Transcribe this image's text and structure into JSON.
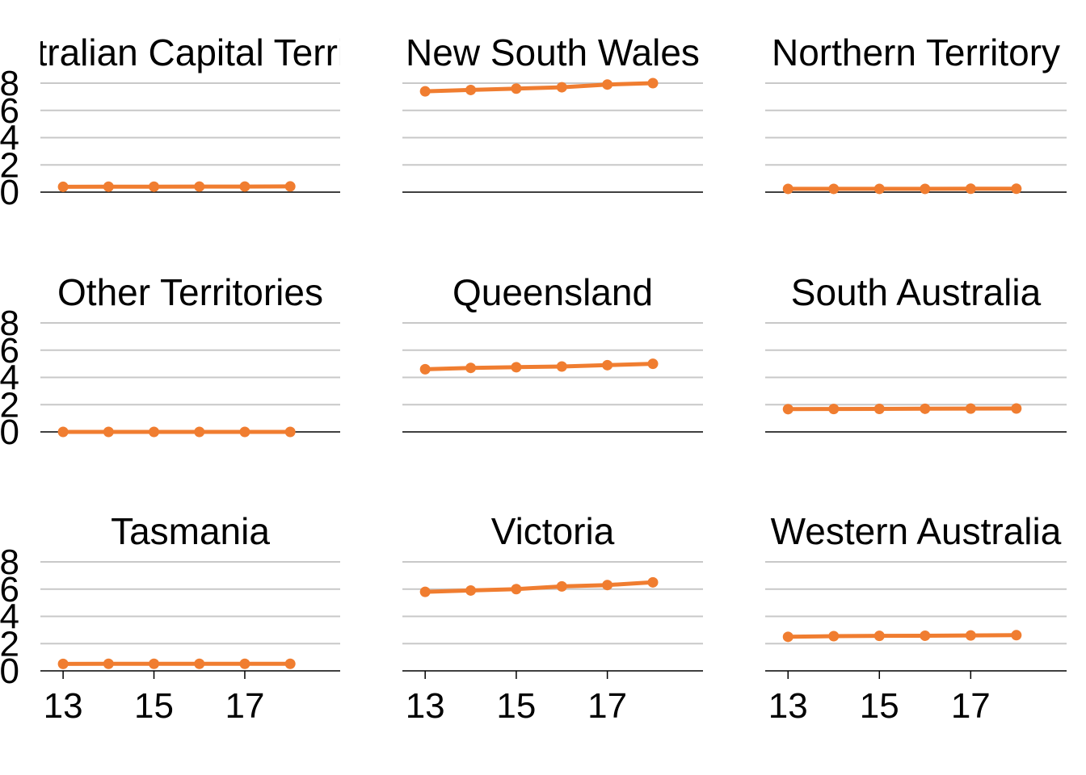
{
  "chart_data": [
    {
      "type": "line",
      "title": "Australian Capital Territory",
      "x": [
        13,
        14,
        15,
        16,
        17,
        18
      ],
      "values": [
        0.39,
        0.4,
        0.4,
        0.41,
        0.41,
        0.42
      ]
    },
    {
      "type": "line",
      "title": "New South Wales",
      "x": [
        13,
        14,
        15,
        16,
        17,
        18
      ],
      "values": [
        7.4,
        7.5,
        7.6,
        7.7,
        7.9,
        8.0
      ]
    },
    {
      "type": "line",
      "title": "Northern Territory",
      "x": [
        13,
        14,
        15,
        16,
        17,
        18
      ],
      "values": [
        0.24,
        0.24,
        0.24,
        0.24,
        0.25,
        0.25
      ]
    },
    {
      "type": "line",
      "title": "Other Territories",
      "x": [
        13,
        14,
        15,
        16,
        17,
        18
      ],
      "values": [
        0.0,
        0.0,
        0.0,
        0.0,
        0.0,
        0.0
      ]
    },
    {
      "type": "line",
      "title": "Queensland",
      "x": [
        13,
        14,
        15,
        16,
        17,
        18
      ],
      "values": [
        4.6,
        4.7,
        4.75,
        4.8,
        4.9,
        5.0
      ]
    },
    {
      "type": "line",
      "title": "South Australia",
      "x": [
        13,
        14,
        15,
        16,
        17,
        18
      ],
      "values": [
        1.67,
        1.68,
        1.69,
        1.7,
        1.71,
        1.72
      ]
    },
    {
      "type": "line",
      "title": "Tasmania",
      "x": [
        13,
        14,
        15,
        16,
        17,
        18
      ],
      "values": [
        0.51,
        0.52,
        0.52,
        0.52,
        0.52,
        0.52
      ]
    },
    {
      "type": "line",
      "title": "Victoria",
      "x": [
        13,
        14,
        15,
        16,
        17,
        18
      ],
      "values": [
        5.8,
        5.9,
        6.0,
        6.2,
        6.3,
        6.5
      ]
    },
    {
      "type": "line",
      "title": "Western Australia",
      "x": [
        13,
        14,
        15,
        16,
        17,
        18
      ],
      "values": [
        2.5,
        2.55,
        2.57,
        2.58,
        2.6,
        2.62
      ]
    }
  ],
  "axes": {
    "y_ticks": [
      0,
      2,
      4,
      6,
      8
    ],
    "y_tick_labels": [
      "0",
      "2",
      "4",
      "6",
      "8"
    ],
    "ylim": [
      0,
      8
    ],
    "x_ticks": [
      13,
      15,
      17
    ],
    "x_tick_labels": [
      "13",
      "15",
      "17"
    ],
    "xlim": [
      12.5,
      19.1
    ],
    "grid": "horizontal",
    "facet_layout": "3x3",
    "free_x": false,
    "free_y": false
  },
  "style": {
    "series_color": "#F07D30",
    "grid_color": "#C8C8C8",
    "axis_color": "#000000"
  }
}
